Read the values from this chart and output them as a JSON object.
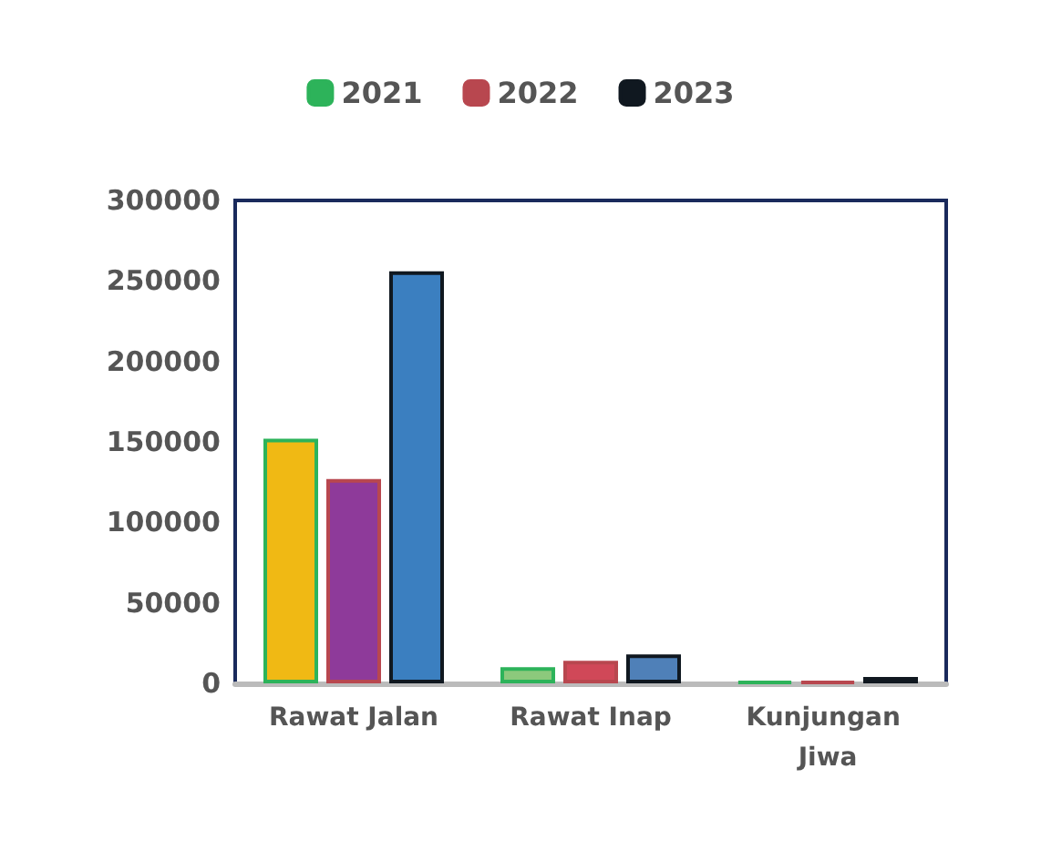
{
  "chart_data": {
    "type": "bar",
    "categories": [
      "Rawat Jalan",
      "Rawat Inap",
      "Kunjungan Jiwa"
    ],
    "series": [
      {
        "name": "2021",
        "color": "#2db35a",
        "colors": [
          "#f0b914",
          "#8cc97c",
          "#2db35a"
        ],
        "values": [
          152000,
          10000,
          1000
        ]
      },
      {
        "name": "2022",
        "color": "#b8474f",
        "colors": [
          "#8e3a9a",
          "#d04858",
          "#b8474f"
        ],
        "values": [
          127000,
          14000,
          1000
        ]
      },
      {
        "name": "2023",
        "color": "#101820",
        "colors": [
          "#3b7fc0",
          "#4f80b8",
          "#101820"
        ],
        "values": [
          256000,
          18000,
          4000
        ]
      }
    ],
    "ylim": [
      0,
      300000
    ],
    "yticks": [
      0,
      50000,
      100000,
      150000,
      200000,
      250000,
      300000
    ],
    "grid": false,
    "legend": "top"
  }
}
